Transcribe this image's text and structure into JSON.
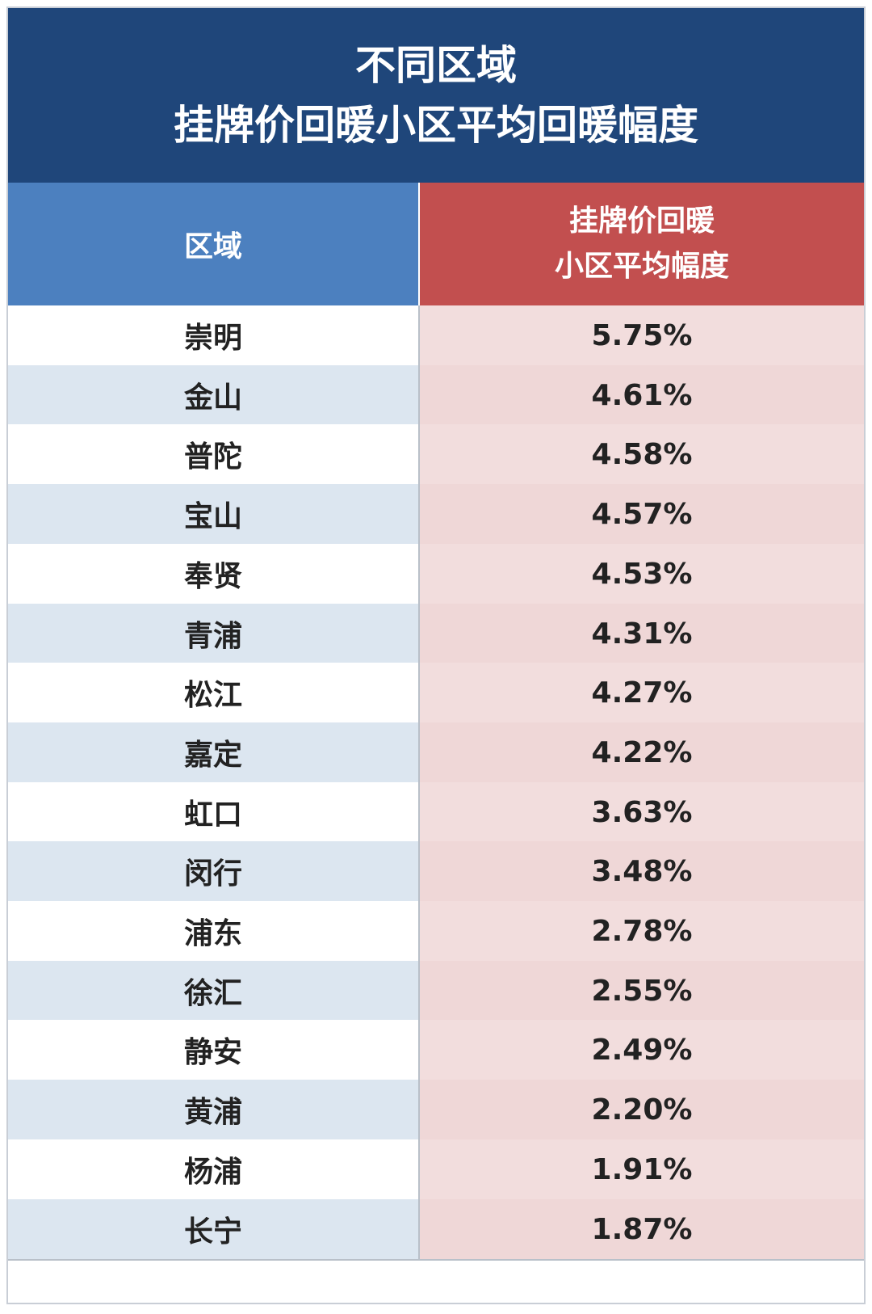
{
  "chart_data": {
    "type": "table",
    "title_lines": [
      "不同区域",
      "挂牌价回暖小区平均回暖幅度"
    ],
    "columns": [
      {
        "key": "region",
        "label_lines": [
          "区域"
        ]
      },
      {
        "key": "value",
        "label_lines": [
          "挂牌价回暖",
          "小区平均幅度"
        ]
      }
    ],
    "rows": [
      {
        "region": "崇明",
        "value": "5.75%"
      },
      {
        "region": "金山",
        "value": "4.61%"
      },
      {
        "region": "普陀",
        "value": "4.58%"
      },
      {
        "region": "宝山",
        "value": "4.57%"
      },
      {
        "region": "奉贤",
        "value": "4.53%"
      },
      {
        "region": "青浦",
        "value": "4.31%"
      },
      {
        "region": "松江",
        "value": "4.27%"
      },
      {
        "region": "嘉定",
        "value": "4.22%"
      },
      {
        "region": "虹口",
        "value": "3.63%"
      },
      {
        "region": "闵行",
        "value": "3.48%"
      },
      {
        "region": "浦东",
        "value": "2.78%"
      },
      {
        "region": "徐汇",
        "value": "2.55%"
      },
      {
        "region": "静安",
        "value": "2.49%"
      },
      {
        "region": "黄浦",
        "value": "2.20%"
      },
      {
        "region": "杨浦",
        "value": "1.91%"
      },
      {
        "region": "长宁",
        "value": "1.87%"
      }
    ],
    "colors": {
      "title_bg": "#1f467a",
      "region_header_bg": "#4c80bf",
      "value_header_bg": "#c24f4f",
      "alt_row_bg": "#dce6f0",
      "value_col_bg": "#f2dddd"
    }
  }
}
